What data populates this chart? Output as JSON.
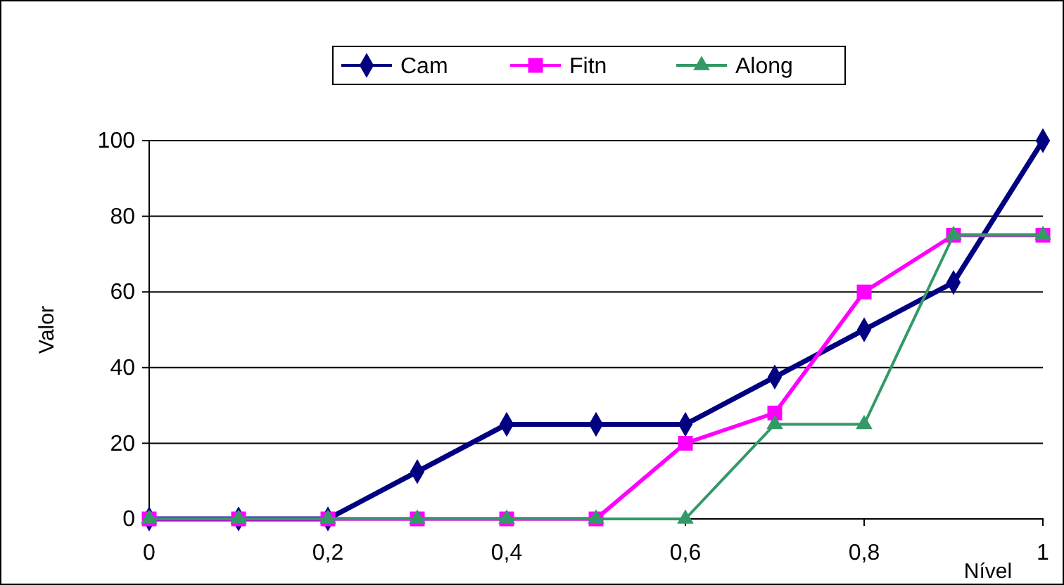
{
  "chart_data": {
    "type": "line",
    "xlabel": "Nível",
    "ylabel": "Valor",
    "x": [
      0,
      0.1,
      0.2,
      0.3,
      0.4,
      0.5,
      0.6,
      0.7,
      0.8,
      0.9,
      1
    ],
    "series": [
      {
        "name": "Cam",
        "color": "#000080",
        "marker": "diamond",
        "values": [
          0,
          0,
          0,
          12.5,
          25,
          25,
          25,
          37.5,
          50,
          62.5,
          100
        ]
      },
      {
        "name": "Fitn",
        "color": "#ff00ff",
        "marker": "square",
        "values": [
          0,
          0,
          0,
          0,
          0,
          0,
          20,
          28,
          60,
          75,
          75
        ]
      },
      {
        "name": "Along",
        "color": "#339966",
        "marker": "triangle",
        "values": [
          0,
          0,
          0,
          0,
          0,
          0,
          0,
          25,
          25,
          75,
          75
        ]
      }
    ],
    "xlim": [
      0,
      1
    ],
    "xticks": [
      {
        "value": 0,
        "label": "0"
      },
      {
        "value": 0.2,
        "label": "0,2"
      },
      {
        "value": 0.4,
        "label": "0,4"
      },
      {
        "value": 0.6,
        "label": "0,6"
      },
      {
        "value": 0.8,
        "label": "0,8"
      },
      {
        "value": 1,
        "label": "1"
      }
    ],
    "ylim": [
      0,
      100
    ],
    "yticks": [
      0,
      20,
      40,
      60,
      80,
      100
    ],
    "grid": "y",
    "legend": "top",
    "line_style": "solid"
  }
}
